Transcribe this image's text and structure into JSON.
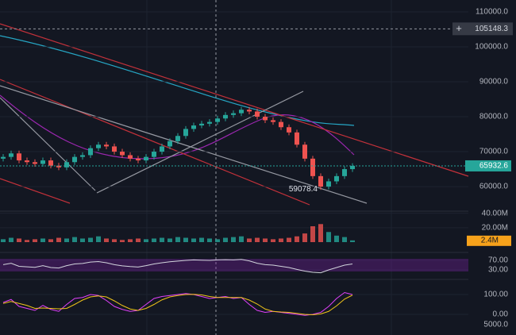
{
  "chart_data": [
    {
      "type": "candlestick",
      "ylim": [
        53200,
        113400
      ],
      "yticks": [
        {
          "value": 60000,
          "label": "60000.0"
        },
        {
          "value": 70000,
          "label": "70000.0"
        },
        {
          "value": 80000,
          "label": "80000.0"
        },
        {
          "value": 90000,
          "label": "90000.0"
        },
        {
          "value": 100000,
          "label": "100000.0"
        },
        {
          "value": 110000,
          "label": "110000.0"
        }
      ],
      "crosshair_price": 105148.3,
      "up_color": "#26a69a",
      "down_color": "#ef5350",
      "open": [
        68000,
        68500,
        69500,
        67500,
        67000,
        66500,
        67500,
        66000,
        65500,
        67000,
        68500,
        69000,
        71000,
        72000,
        71500,
        70000,
        69000,
        68000,
        67500,
        68500,
        70000,
        71500,
        73000,
        74500,
        76500,
        77500,
        78000,
        78500,
        79500,
        80500,
        81000,
        82000,
        81500,
        80000,
        79000,
        78500,
        77000,
        75500,
        72000,
        68000,
        63000,
        60000,
        61500,
        63000,
        65000
      ],
      "high": [
        69300,
        70300,
        70300,
        68300,
        67800,
        68300,
        68300,
        66800,
        67800,
        69300,
        69800,
        71800,
        72800,
        72800,
        72300,
        70800,
        69800,
        68800,
        69300,
        70800,
        72300,
        73800,
        75300,
        77300,
        78300,
        78800,
        79300,
        80300,
        81300,
        81800,
        82800,
        82800,
        82300,
        80800,
        79800,
        79300,
        77800,
        76300,
        72800,
        68800,
        63800,
        62300,
        63800,
        65800,
        66700
      ],
      "low": [
        67200,
        67700,
        66700,
        66200,
        65700,
        65700,
        65200,
        64700,
        64700,
        66200,
        67700,
        68200,
        70200,
        70700,
        69200,
        68200,
        67200,
        66700,
        66700,
        67700,
        69200,
        70700,
        72200,
        73700,
        75700,
        76700,
        77200,
        77700,
        78700,
        79700,
        80200,
        80700,
        79200,
        78200,
        77700,
        76200,
        74700,
        71200,
        67200,
        62200,
        59078.4,
        59200,
        60700,
        62200,
        64200
      ],
      "close": [
        68500,
        69500,
        67500,
        67000,
        66500,
        67500,
        66000,
        65500,
        67000,
        68500,
        69000,
        71000,
        72000,
        71500,
        70000,
        69000,
        68000,
        67500,
        68500,
        70000,
        71500,
        73000,
        74500,
        76500,
        77500,
        78000,
        78500,
        79500,
        80500,
        81000,
        82000,
        81500,
        80000,
        79000,
        78500,
        77000,
        75500,
        72000,
        68000,
        63000,
        60000,
        61500,
        63000,
        65000,
        65932.6
      ]
    },
    {
      "type": "bar",
      "ylim": [
        0,
        44
      ],
      "yticks": [
        {
          "value": 20,
          "label": "20.00M"
        },
        {
          "value": 40,
          "label": "40.00M"
        }
      ],
      "values": [
        4,
        6,
        5,
        3,
        4,
        5,
        4,
        6,
        5,
        7,
        5,
        6,
        8,
        5,
        4,
        3,
        4,
        5,
        4,
        5,
        6,
        5,
        7,
        6,
        5,
        6,
        5,
        4,
        6,
        7,
        8,
        5,
        6,
        5,
        4,
        5,
        6,
        8,
        12,
        22,
        25,
        14,
        9,
        7,
        2.4
      ],
      "last_value_label": "2.4M"
    },
    {
      "type": "line",
      "ylim": [
        0,
        100
      ],
      "yticks": [
        {
          "value": 30,
          "label": "30.00"
        },
        {
          "value": 70,
          "label": "70.00"
        }
      ],
      "series": [
        {
          "color": "#d1d4dc",
          "values": [
            52,
            58,
            45,
            43,
            41,
            48,
            40,
            38,
            48,
            55,
            57,
            63,
            65,
            60,
            52,
            47,
            44,
            42,
            48,
            55,
            60,
            64,
            67,
            70,
            72,
            71,
            70,
            72,
            73,
            72,
            74,
            68,
            58,
            52,
            50,
            45,
            40,
            32,
            25,
            20,
            18,
            30,
            40,
            50,
            55
          ]
        }
      ]
    },
    {
      "type": "line",
      "ylim": [
        -80,
        180
      ],
      "yticks": [
        {
          "value": 0,
          "label": "0.00"
        },
        {
          "value": 100,
          "label": "100.00"
        }
      ],
      "extra_label": "5000.0",
      "series": [
        {
          "color": "#e040fb",
          "values": [
            60,
            75,
            40,
            30,
            20,
            45,
            25,
            15,
            50,
            80,
            85,
            100,
            95,
            70,
            40,
            25,
            15,
            20,
            50,
            80,
            90,
            95,
            100,
            105,
            100,
            90,
            80,
            85,
            90,
            80,
            85,
            50,
            20,
            10,
            15,
            10,
            5,
            0,
            -5,
            0,
            10,
            40,
            80,
            110,
            100
          ]
        },
        {
          "color": "#f0c419",
          "values": [
            55,
            65,
            55,
            45,
            30,
            32,
            30,
            28,
            30,
            50,
            72,
            88,
            93,
            88,
            68,
            45,
            27,
            20,
            30,
            50,
            73,
            88,
            95,
            100,
            101,
            98,
            90,
            85,
            85,
            85,
            85,
            72,
            52,
            27,
            15,
            12,
            10,
            5,
            0,
            -2,
            2,
            15,
            43,
            77,
            97
          ]
        }
      ]
    }
  ]
}
